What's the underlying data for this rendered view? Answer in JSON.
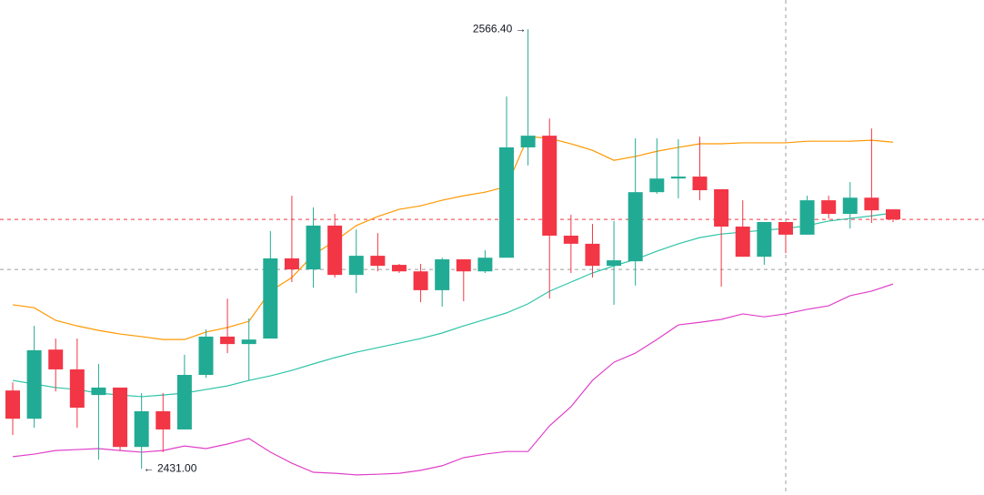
{
  "chart_data": {
    "type": "candlestick",
    "ylim": [
      2422.9,
      2575.4
    ],
    "up_color": "#22ab94",
    "down_color": "#f23645",
    "open": [
      2455.1,
      2446.4,
      2467.7,
      2461.6,
      2453.7,
      2456.0,
      2437.7,
      2448.7,
      2443.1,
      2459.9,
      2471.7,
      2469.4,
      2471.1,
      2495.8,
      2492.4,
      2505.9,
      2490.7,
      2496.6,
      2493.8,
      2491.8,
      2486.0,
      2495.5,
      2491.8,
      2496.0,
      2530.0,
      2533.6,
      2502.8,
      2500.3,
      2493.5,
      2494.9,
      2516.2,
      2520.4,
      2521.0,
      2517.1,
      2505.6,
      2496.3,
      2507.0,
      2503.1,
      2513.7,
      2509.5,
      2514.5,
      2510.9
    ],
    "high": [
      2457.6,
      2475.0,
      2471.1,
      2471.1,
      2463.3,
      2456.0,
      2454.3,
      2454.3,
      2466.1,
      2473.9,
      2483.4,
      2477.3,
      2504.2,
      2515.1,
      2511.5,
      2509.5,
      2504.7,
      2503.6,
      2494.1,
      2494.1,
      2496.0,
      2495.5,
      2498.3,
      2545.7,
      2566.4,
      2538.9,
      2509.2,
      2506.4,
      2507.3,
      2532.8,
      2532.8,
      2532.5,
      2533.3,
      2517.1,
      2513.7,
      2507.0,
      2507.0,
      2515.1,
      2515.1,
      2519.3,
      2535.8,
      2510.9
    ],
    "low": [
      2441.4,
      2443.6,
      2454.8,
      2443.6,
      2433.8,
      2436.6,
      2431.0,
      2436.1,
      2443.1,
      2459.0,
      2466.6,
      2458.2,
      2471.1,
      2488.5,
      2486.8,
      2489.9,
      2485.1,
      2491.8,
      2491.3,
      2482.3,
      2480.9,
      2482.6,
      2491.3,
      2496.0,
      2524.4,
      2483.4,
      2491.3,
      2489.9,
      2481.5,
      2487.4,
      2515.7,
      2514.3,
      2513.7,
      2487.1,
      2496.3,
      2493.8,
      2497.4,
      2503.1,
      2508.1,
      2505.0,
      2506.7,
      2507.0
    ],
    "close": [
      2446.4,
      2467.5,
      2461.6,
      2449.8,
      2456.0,
      2437.7,
      2448.7,
      2443.1,
      2459.9,
      2471.7,
      2469.4,
      2470.8,
      2495.8,
      2492.4,
      2505.9,
      2490.7,
      2496.6,
      2493.5,
      2491.8,
      2486.0,
      2495.5,
      2491.8,
      2496.0,
      2530.0,
      2533.6,
      2502.8,
      2500.3,
      2493.5,
      2495.2,
      2516.2,
      2520.4,
      2521.0,
      2516.8,
      2505.6,
      2496.3,
      2507.0,
      2503.1,
      2513.7,
      2509.5,
      2514.5,
      2510.6,
      2507.8
    ],
    "lines": [
      {
        "color": "#ff9800",
        "values": [
          2481.5,
          2480.6,
          2476.7,
          2475.0,
          2473.6,
          2472.5,
          2471.7,
          2470.8,
          2470.8,
          2473.1,
          2474.5,
          2476.4,
          2485.7,
          2489.9,
          2496.9,
          2501.1,
          2505.9,
          2508.7,
          2510.9,
          2512.0,
          2513.7,
          2515.1,
          2516.2,
          2517.9,
          2533.3,
          2532.8,
          2531.1,
          2529.1,
          2526.0,
          2527.2,
          2528.8,
          2530.0,
          2531.1,
          2531.1,
          2531.4,
          2531.4,
          2531.4,
          2531.9,
          2531.9,
          2531.9,
          2532.2,
          2531.6
        ]
      },
      {
        "color": "#2ec4a8",
        "values": [
          2458.2,
          2457.1,
          2456.0,
          2455.4,
          2454.3,
          2453.7,
          2453.2,
          2453.7,
          2454.3,
          2455.4,
          2456.5,
          2458.2,
          2459.6,
          2461.3,
          2463.3,
          2465.2,
          2466.9,
          2468.3,
          2469.7,
          2471.1,
          2472.8,
          2475.0,
          2477.0,
          2479.0,
          2481.8,
          2485.7,
          2488.5,
          2491.3,
          2493.5,
          2495.5,
          2498.0,
          2500.3,
          2502.2,
          2503.3,
          2503.9,
          2504.5,
          2505.0,
          2505.9,
          2507.3,
          2508.1,
          2508.9,
          2509.8
        ]
      },
      {
        "color": "#e040c8",
        "values": [
          2434.7,
          2435.5,
          2436.6,
          2436.9,
          2437.2,
          2436.6,
          2436.1,
          2436.6,
          2438.0,
          2437.2,
          2438.6,
          2440.3,
          2436.1,
          2432.7,
          2429.9,
          2429.6,
          2429.1,
          2429.3,
          2429.6,
          2430.5,
          2431.9,
          2434.4,
          2435.5,
          2436.3,
          2436.3,
          2444.2,
          2450.1,
          2458.2,
          2463.8,
          2466.6,
          2470.8,
          2475.3,
          2476.1,
          2477.0,
          2478.7,
          2477.8,
          2478.7,
          2480.1,
          2481.2,
          2484.3,
          2485.7,
          2487.9
        ]
      }
    ],
    "reference_lines": [
      {
        "value": 2507.8,
        "color": "#f23645"
      },
      {
        "value": 2492.4,
        "color": "#9e9e9e"
      }
    ],
    "annotations": [
      {
        "label": "2566.40 →",
        "value": 2566.4
      },
      {
        "label": "← 2431.00",
        "value": 2431.0
      }
    ]
  }
}
